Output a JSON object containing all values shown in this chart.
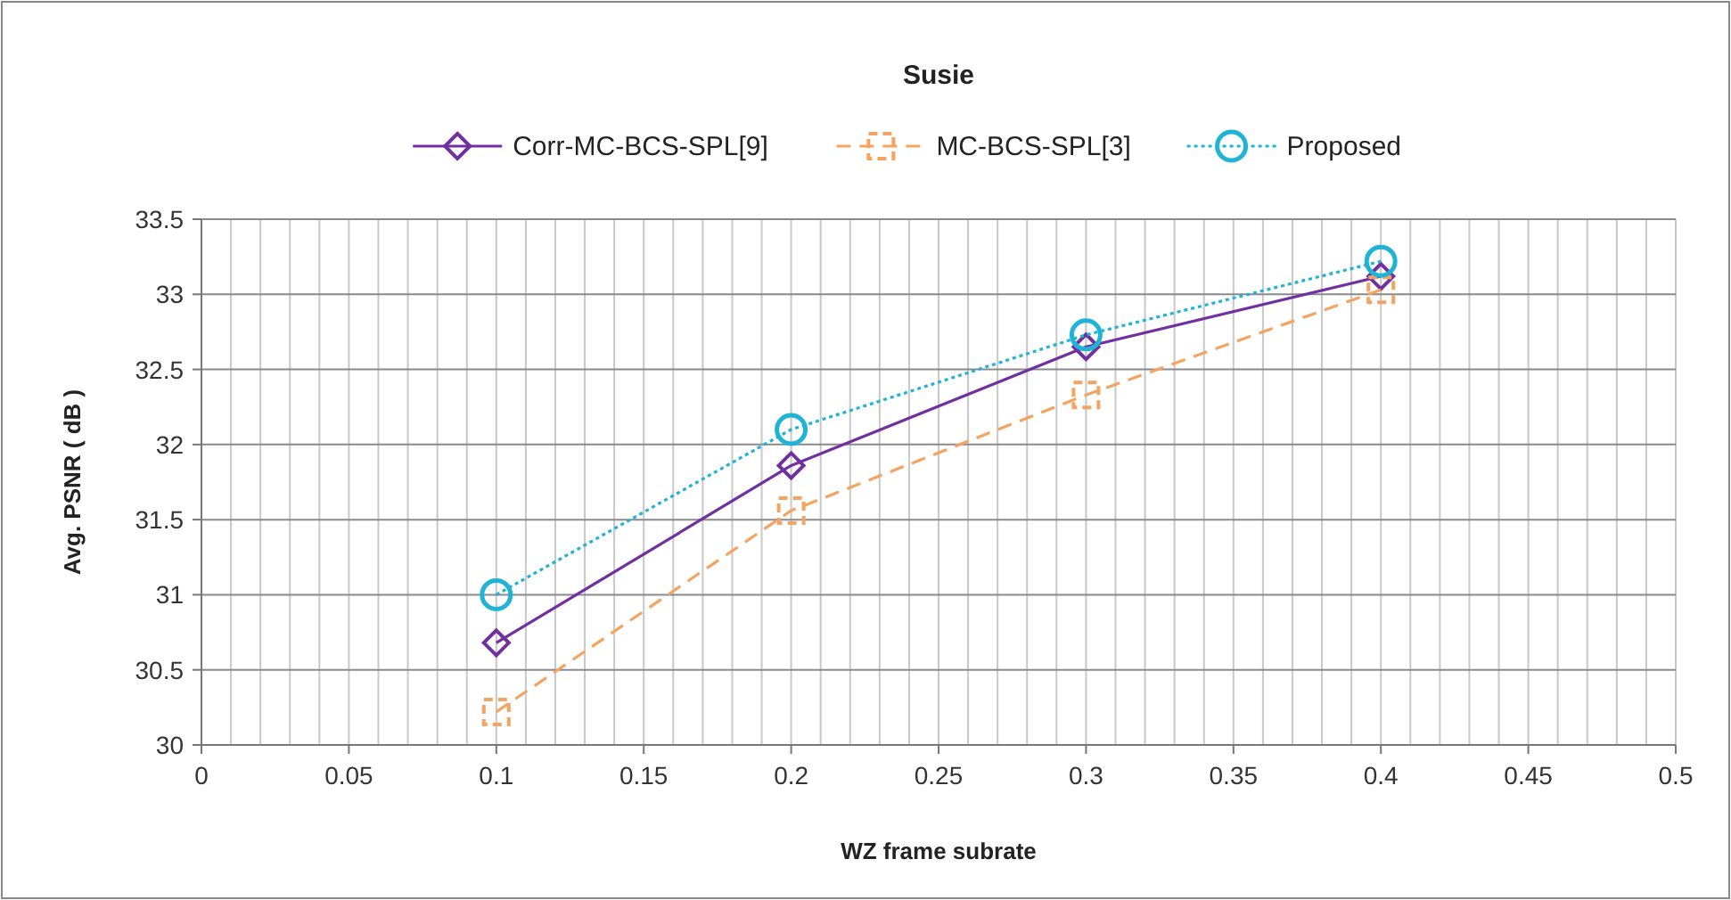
{
  "chart_data": {
    "type": "line",
    "title": "Susie",
    "xlabel": "WZ frame subrate",
    "ylabel": "Avg. PSNR ( dB )",
    "x": [
      0.1,
      0.2,
      0.3,
      0.4
    ],
    "series": [
      {
        "name": "Corr-MC-BCS-SPL[9]",
        "color": "#7030a0",
        "marker": "diamond",
        "line_style": "solid",
        "values": [
          30.68,
          31.86,
          32.65,
          33.12
        ]
      },
      {
        "name": "MC-BCS-SPL[3]",
        "color": "#f4a460",
        "marker": "square",
        "line_style": "dashed",
        "values": [
          30.22,
          31.56,
          32.33,
          33.03
        ]
      },
      {
        "name": "Proposed",
        "color": "#1fb3d6",
        "marker": "circle",
        "line_style": "dotted",
        "values": [
          31.0,
          32.1,
          32.73,
          33.22
        ]
      }
    ],
    "xlim": [
      0,
      0.5
    ],
    "xticks": [
      0,
      {
        "value": 0.01,
        "label": null
      },
      {
        "value": 0.02,
        "label": null
      },
      {
        "value": 0.03,
        "label": null
      },
      {
        "value": 0.04,
        "label": null
      },
      0.05,
      {
        "value": 0.06,
        "label": null
      },
      {
        "value": 0.07,
        "label": null
      },
      {
        "value": 0.08,
        "label": null
      },
      {
        "value": 0.09,
        "label": null
      },
      0.1,
      {
        "value": 0.11,
        "label": null
      },
      {
        "value": 0.12,
        "label": null
      },
      {
        "value": 0.13,
        "label": null
      },
      {
        "value": 0.14,
        "label": null
      },
      0.15,
      {
        "value": 0.16,
        "label": null
      },
      {
        "value": 0.17,
        "label": null
      },
      {
        "value": 0.18,
        "label": null
      },
      {
        "value": 0.19,
        "label": null
      },
      0.2,
      {
        "value": 0.21,
        "label": null
      },
      {
        "value": 0.22,
        "label": null
      },
      {
        "value": 0.23,
        "label": null
      },
      {
        "value": 0.24,
        "label": null
      },
      0.25,
      {
        "value": 0.26,
        "label": null
      },
      {
        "value": 0.27,
        "label": null
      },
      {
        "value": 0.28,
        "label": null
      },
      {
        "value": 0.29,
        "label": null
      },
      0.3,
      {
        "value": 0.31,
        "label": null
      },
      {
        "value": 0.32,
        "label": null
      },
      {
        "value": 0.33,
        "label": null
      },
      {
        "value": 0.34,
        "label": null
      },
      0.35,
      {
        "value": 0.36,
        "label": null
      },
      {
        "value": 0.37,
        "label": null
      },
      {
        "value": 0.38,
        "label": null
      },
      {
        "value": 0.39,
        "label": null
      },
      0.4,
      {
        "value": 0.41,
        "label": null
      },
      {
        "value": 0.42,
        "label": null
      },
      {
        "value": 0.43,
        "label": null
      },
      {
        "value": 0.44,
        "label": null
      },
      0.45,
      {
        "value": 0.46,
        "label": null
      },
      {
        "value": 0.47,
        "label": null
      },
      {
        "value": 0.48,
        "label": null
      },
      {
        "value": 0.49,
        "label": null
      },
      0.5
    ],
    "ylim": [
      30,
      33.5
    ],
    "yticks": [
      30,
      30.5,
      31,
      31.5,
      32,
      32.5,
      33,
      33.5
    ],
    "grid": true,
    "legend": "top"
  }
}
